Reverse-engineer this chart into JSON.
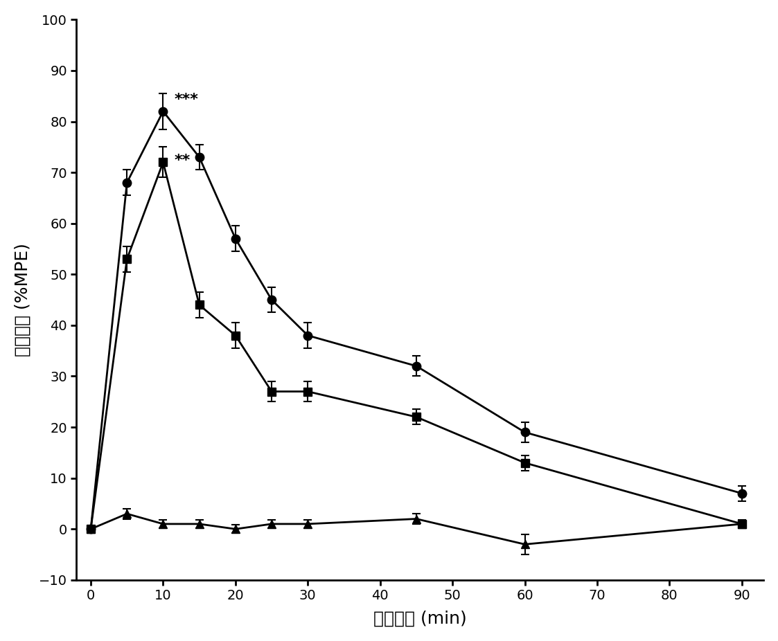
{
  "x": [
    0,
    5,
    10,
    15,
    20,
    25,
    30,
    45,
    60,
    75,
    90
  ],
  "circle_y": [
    0,
    68,
    82,
    73,
    57,
    45,
    38,
    32,
    19,
    null,
    7
  ],
  "circle_err": [
    0,
    2.5,
    3.5,
    2.5,
    2.5,
    2.5,
    2.5,
    2.0,
    2.0,
    null,
    1.5
  ],
  "square_y": [
    0,
    53,
    72,
    44,
    38,
    27,
    27,
    22,
    13,
    null,
    1
  ],
  "square_err": [
    0,
    2.5,
    3.0,
    2.5,
    2.5,
    2.0,
    2.0,
    1.5,
    1.5,
    null,
    0.8
  ],
  "triangle_y": [
    0,
    3,
    1,
    1,
    0,
    1,
    1,
    2,
    -3,
    null,
    1
  ],
  "triangle_err": [
    0,
    1.0,
    0.8,
    0.8,
    0.8,
    0.8,
    0.8,
    1.0,
    2.0,
    null,
    0.5
  ],
  "xlabel": "测量时间 (min)",
  "ylabel": "镇痛活性 (%MPE)",
  "annotation_circle": "***",
  "annotation_square": "**",
  "xlim": [
    -2,
    93
  ],
  "ylim": [
    -10,
    100
  ],
  "xticks": [
    0,
    10,
    20,
    30,
    40,
    50,
    60,
    70,
    80,
    90
  ],
  "yticks": [
    -10,
    0,
    10,
    20,
    30,
    40,
    50,
    60,
    70,
    80,
    90,
    100
  ],
  "line_color": "#000000",
  "bg_color": "#ffffff"
}
